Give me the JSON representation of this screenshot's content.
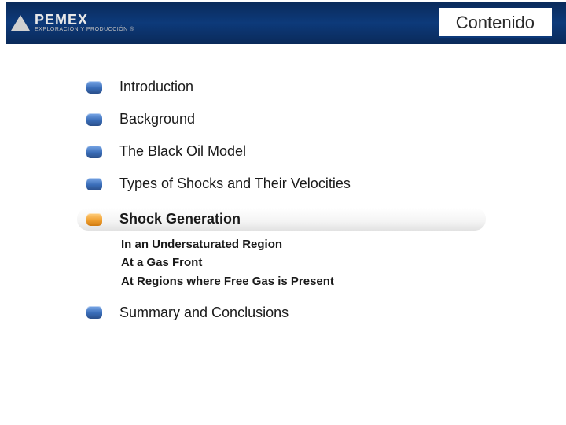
{
  "header": {
    "logo_main": "PEMEX",
    "logo_sub": "EXPLORACIÓN Y PRODUCCIÓN ®",
    "title": "Contenido"
  },
  "colors": {
    "header_bg": "#0d3a7a",
    "bullet_blue": "#3a6db8",
    "bullet_orange": "#f0a030",
    "text": "#1a1a1a"
  },
  "toc": {
    "items": [
      {
        "label": "Introduction",
        "highlight": false
      },
      {
        "label": "Background",
        "highlight": false
      },
      {
        "label": "The Black Oil Model",
        "highlight": false
      },
      {
        "label": "Types of Shocks and Their Velocities",
        "highlight": false
      },
      {
        "label": "Shock Generation",
        "highlight": true
      },
      {
        "label": "Summary and Conclusions",
        "highlight": false
      }
    ],
    "sub_items": [
      "In an Undersaturated Region",
      "At a Gas Front",
      "At  Regions where Free Gas is Present"
    ]
  }
}
